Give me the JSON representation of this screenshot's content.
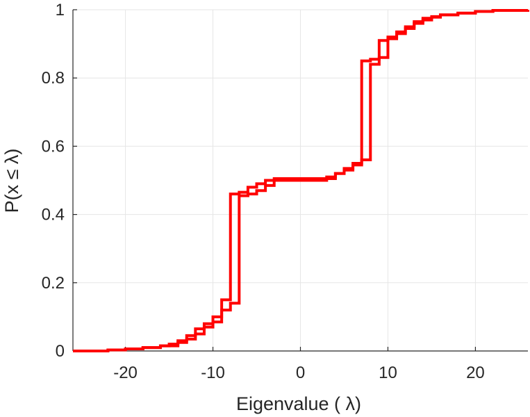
{
  "chart_data": {
    "type": "line",
    "title": "",
    "xlabel": "Eigenvalue (   λ)",
    "ylabel": "P(x  ≤  λ)",
    "xlim": [
      -26,
      26
    ],
    "ylim": [
      0,
      1
    ],
    "xticks": [
      -20,
      -10,
      0,
      10,
      20
    ],
    "yticks": [
      0,
      0.2,
      0.4,
      0.6,
      0.8,
      1
    ],
    "xtick_labels": [
      "-20",
      "-10",
      "0",
      "10",
      "20"
    ],
    "ytick_labels": [
      "0",
      "0.2",
      "0.4",
      "0.6",
      "0.8",
      "1"
    ],
    "grid": true,
    "line_color": "#ff0000",
    "series": [
      {
        "step": true,
        "x": [
          -26,
          -22,
          -20,
          -18,
          -16,
          -15,
          -14,
          -13,
          -12,
          -11,
          -10,
          -9,
          -8,
          -7,
          -6,
          -5,
          -4,
          -3,
          3,
          4,
          5,
          6,
          7,
          8,
          9,
          10,
          11,
          12,
          13,
          14,
          15,
          16,
          18,
          20,
          22,
          26
        ],
        "y": [
          0.0,
          0.003,
          0.006,
          0.01,
          0.015,
          0.02,
          0.03,
          0.045,
          0.065,
          0.08,
          0.1,
          0.15,
          0.46,
          0.465,
          0.48,
          0.49,
          0.5,
          0.505,
          0.51,
          0.52,
          0.535,
          0.55,
          0.85,
          0.855,
          0.91,
          0.92,
          0.935,
          0.95,
          0.965,
          0.975,
          0.98,
          0.985,
          0.99,
          0.995,
          0.998,
          1.0
        ]
      },
      {
        "step": true,
        "x": [
          -26,
          -22,
          -20,
          -18,
          -16,
          -14,
          -13,
          -12,
          -11,
          -10,
          -9,
          -8,
          -7,
          -6,
          -5,
          -4,
          -3,
          3,
          4,
          5,
          6,
          7,
          8,
          9,
          10,
          11,
          12,
          13,
          14,
          15,
          16,
          18,
          20,
          22,
          26
        ],
        "y": [
          0.0,
          0.003,
          0.006,
          0.01,
          0.015,
          0.025,
          0.035,
          0.05,
          0.07,
          0.085,
          0.12,
          0.14,
          0.455,
          0.46,
          0.47,
          0.485,
          0.5,
          0.505,
          0.52,
          0.53,
          0.545,
          0.56,
          0.84,
          0.86,
          0.915,
          0.93,
          0.945,
          0.96,
          0.97,
          0.978,
          0.985,
          0.99,
          0.995,
          0.998,
          1.0
        ]
      }
    ]
  }
}
